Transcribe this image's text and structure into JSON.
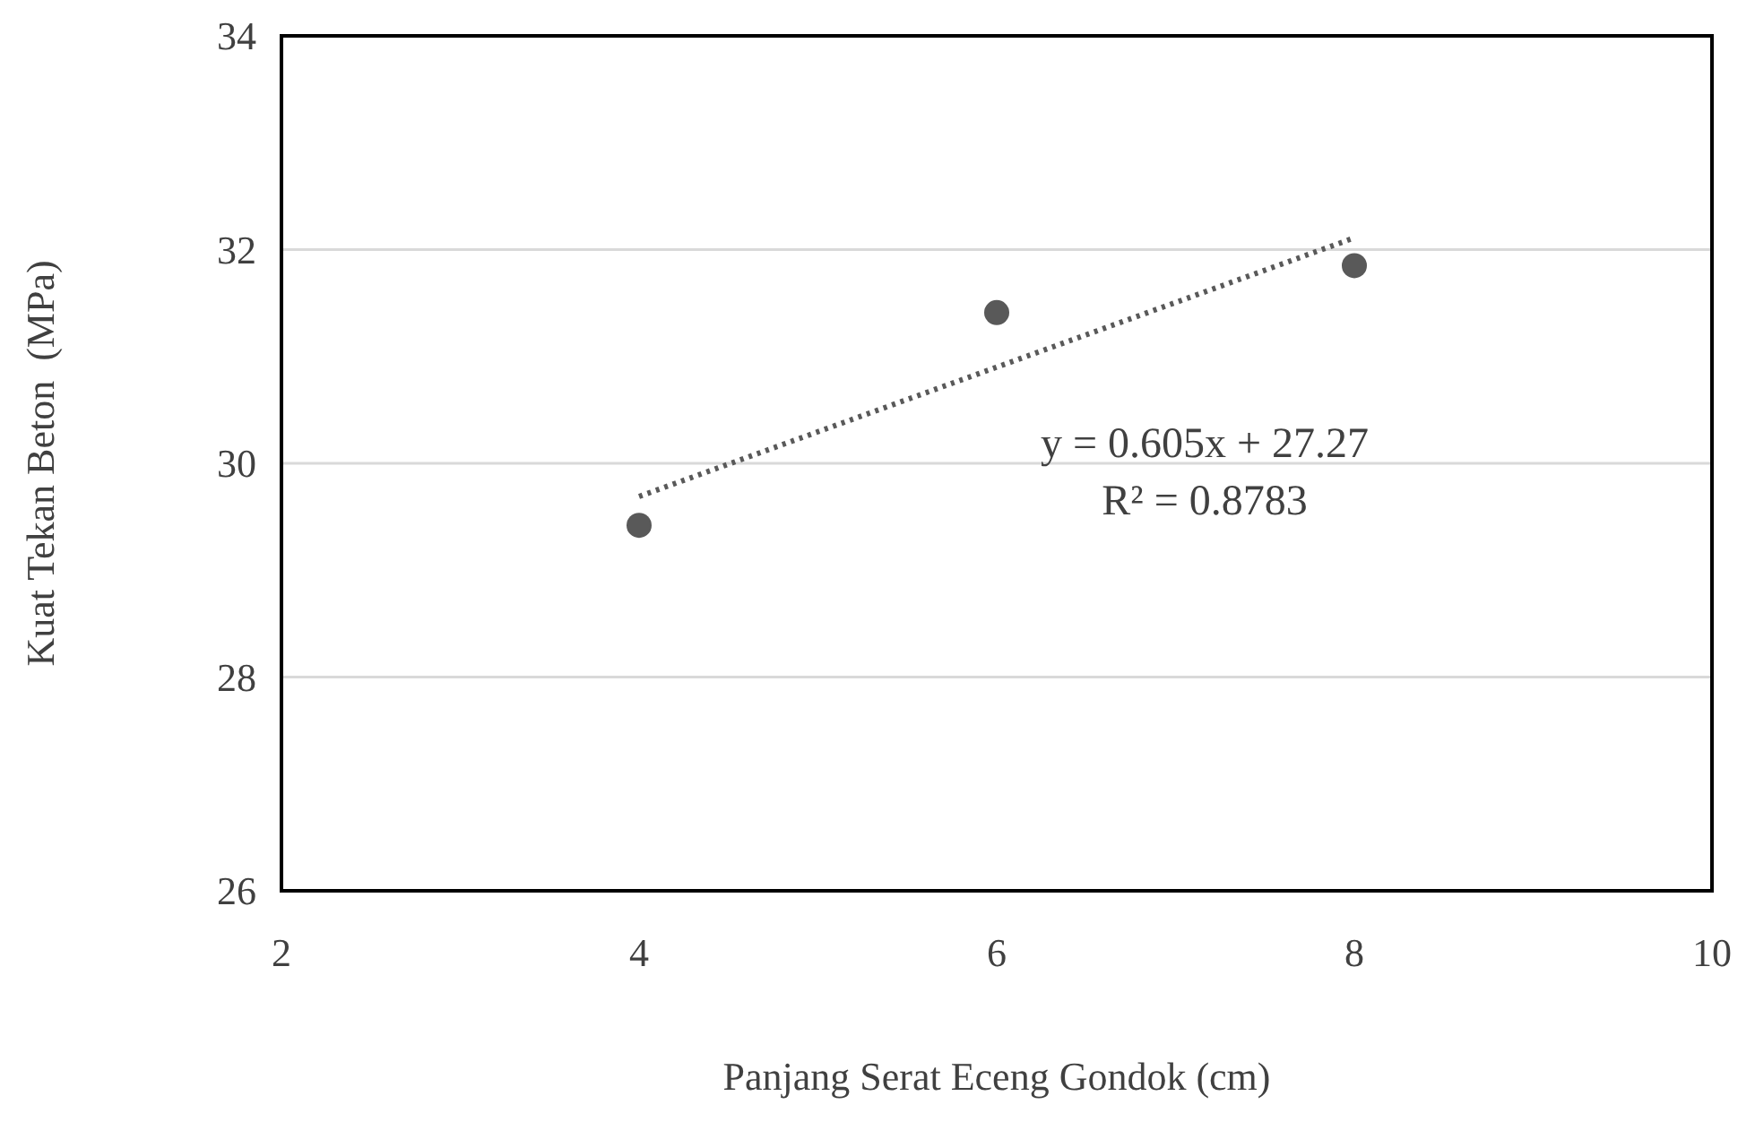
{
  "chart_data": {
    "type": "scatter",
    "xlabel": "Panjang Serat Eceng Gondok (cm)",
    "ylabel": "Kuat Tekan Beton  (MPa)",
    "xlim": [
      2,
      10
    ],
    "xticks": [
      2,
      4,
      6,
      8,
      10
    ],
    "ylim": [
      26,
      34
    ],
    "yticks": [
      26,
      28,
      30,
      32,
      34
    ],
    "grid": "y",
    "series": [
      {
        "color": "#595959",
        "marker": "circle",
        "x": [
          4,
          6,
          8
        ],
        "values": [
          29.42,
          31.41,
          31.85
        ]
      },
      {
        "type": "line",
        "color": "#595959",
        "marker": "none",
        "line_style": "dotted",
        "x": [
          4,
          8
        ],
        "values": [
          29.69,
          32.11
        ]
      }
    ],
    "annotations": [
      "y = 0.605x + 27.27",
      "R² = 0.8783"
    ]
  }
}
